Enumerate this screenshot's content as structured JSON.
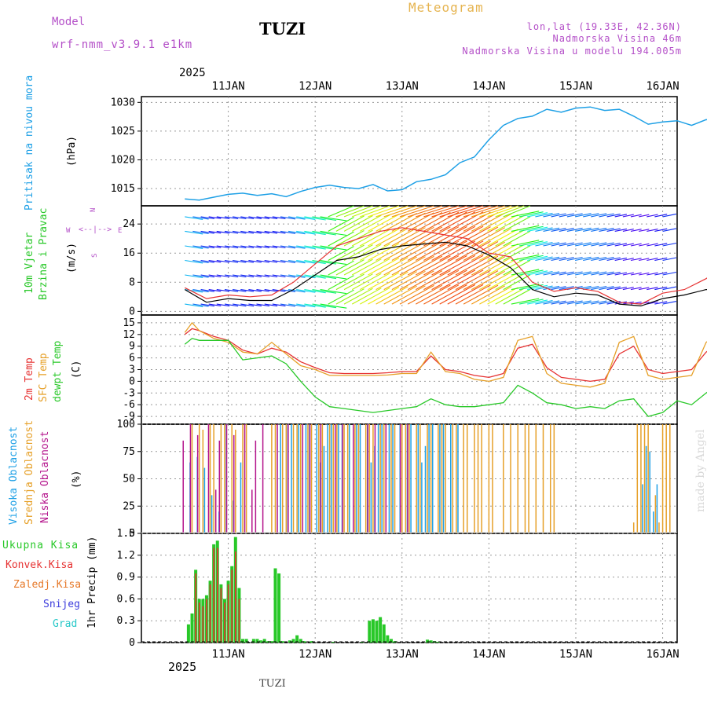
{
  "header": {
    "model_label": "Model",
    "model_name": "wrf-nmm_v3.9.1 e1km",
    "location": "TUZI",
    "title": "Meteogram",
    "coords": "lon,lat (19.33E, 42.36N)",
    "elevation": "Nadmorska Visina 46m",
    "model_elevation": "Nadmorska Visina u modelu 194.005m",
    "year_top": "2025",
    "year_bottom": "2025",
    "footer_location": "TUZI",
    "watermark": "made by Angel"
  },
  "colors": {
    "pressure": "#1ea0e6",
    "temp2m": "#e63232",
    "sfc": "#e6a028",
    "dewpoint": "#28c828",
    "high_cloud": "#1ea0e6",
    "mid_cloud": "#e6a028",
    "low_cloud": "#b4148c",
    "precip_total": "#28c828",
    "precip_conv": "#e63232",
    "precip_snow": "#3c3cdc",
    "wind_gust": "#e63232",
    "wind_dir_label": "#b450c8"
  },
  "chart_data": [
    {
      "type": "line",
      "panel": "pressure",
      "ylabel": [
        "Pritisak na nivou mora",
        "(hPa)"
      ],
      "ylim": [
        1012,
        1031
      ],
      "yticks": [
        1015,
        1020,
        1025,
        1030
      ],
      "x_days": [
        "11JAN",
        "12JAN",
        "13JAN",
        "14JAN",
        "15JAN",
        "16JAN"
      ],
      "x": [
        0,
        4,
        8,
        12,
        16,
        20,
        24,
        28,
        32,
        36,
        40,
        44,
        48,
        52,
        56,
        60,
        64,
        68,
        72,
        76,
        80,
        84,
        88,
        92,
        96,
        100,
        104,
        108,
        112,
        116,
        120,
        124,
        128,
        132,
        136,
        140,
        144,
        148
      ],
      "values": [
        1013.2,
        1013.0,
        1013.5,
        1014.0,
        1014.2,
        1013.8,
        1014.1,
        1013.6,
        1014.5,
        1015.2,
        1015.6,
        1015.2,
        1015.0,
        1015.7,
        1014.6,
        1014.8,
        1016.2,
        1016.6,
        1017.4,
        1019.5,
        1020.5,
        1023.5,
        1026.0,
        1027.2,
        1027.6,
        1028.8,
        1028.3,
        1029.0,
        1029.2,
        1028.6,
        1028.8,
        1027.6,
        1026.2,
        1026.6,
        1026.8,
        1026.0,
        1027.0,
        1026.7
      ]
    },
    {
      "type": "line",
      "panel": "wind",
      "ylabel": [
        "10m Vjetar",
        "Brzina i Pravac",
        "(m/s)"
      ],
      "direction_legend": [
        "N",
        "W",
        "E",
        "S"
      ],
      "ylim": [
        -1,
        29
      ],
      "yticks": [
        0,
        8,
        16,
        24
      ],
      "x": [
        0,
        6,
        12,
        18,
        24,
        30,
        36,
        42,
        48,
        54,
        60,
        66,
        72,
        78,
        84,
        90,
        96,
        102,
        108,
        114,
        120,
        126,
        132,
        138,
        144,
        148
      ],
      "series": [
        {
          "name": "speed",
          "values": [
            6.0,
            2.5,
            3.5,
            3.0,
            3.0,
            6.0,
            10.0,
            14.0,
            15.0,
            17.0,
            18.0,
            18.5,
            19.0,
            18.0,
            15.5,
            12.0,
            6.0,
            4.0,
            5.0,
            4.5,
            2.0,
            1.5,
            3.5,
            4.5,
            6.0,
            6.0
          ]
        },
        {
          "name": "gust",
          "values": [
            6.5,
            3.5,
            4.5,
            4.0,
            4.5,
            8.0,
            13.0,
            18.0,
            20.0,
            22.0,
            23.0,
            22.0,
            21.0,
            20.0,
            16.0,
            15.0,
            8.0,
            5.5,
            6.5,
            5.5,
            2.5,
            2.0,
            5.0,
            6.0,
            9.0,
            12.0
          ]
        }
      ]
    },
    {
      "type": "line",
      "panel": "temperature",
      "ylabel": [
        "2m Temp",
        "SFC Temp",
        "dewpt Temp",
        "(C)"
      ],
      "ylim": [
        -11,
        17
      ],
      "yticks": [
        -9,
        -6,
        -3,
        0,
        3,
        6,
        9,
        12,
        15
      ],
      "x": [
        0,
        2,
        4,
        8,
        12,
        16,
        20,
        24,
        28,
        32,
        36,
        40,
        44,
        48,
        52,
        56,
        60,
        64,
        68,
        72,
        76,
        80,
        84,
        88,
        92,
        96,
        100,
        104,
        108,
        112,
        116,
        120,
        124,
        128,
        132,
        136,
        140,
        144,
        148
      ],
      "series": [
        {
          "name": "2m Temp",
          "values": [
            12.0,
            13.5,
            13.0,
            11.5,
            10.5,
            8.0,
            7.0,
            8.5,
            7.5,
            5.0,
            3.5,
            2.2,
            2.0,
            2.0,
            2.0,
            2.2,
            2.5,
            2.5,
            6.5,
            3.0,
            2.5,
            1.5,
            1.0,
            2.0,
            8.5,
            9.5,
            3.5,
            1.0,
            0.5,
            0.0,
            0.5,
            7.0,
            9.0,
            3.0,
            2.0,
            2.5,
            3.0,
            7.5,
            10.0
          ]
        },
        {
          "name": "SFC Temp",
          "values": [
            12.5,
            15.0,
            13.0,
            11.0,
            10.0,
            7.5,
            7.0,
            10.0,
            7.0,
            4.0,
            3.0,
            1.5,
            1.5,
            1.5,
            1.5,
            1.6,
            2.0,
            2.0,
            7.5,
            2.5,
            2.0,
            0.5,
            0.0,
            1.0,
            10.5,
            11.5,
            2.0,
            -0.5,
            -1.0,
            -1.5,
            -0.5,
            10.0,
            11.5,
            1.5,
            0.5,
            1.0,
            1.5,
            10.0,
            12.5
          ]
        },
        {
          "name": "dewpt Temp",
          "values": [
            9.5,
            11.0,
            10.5,
            10.5,
            10.5,
            5.5,
            6.0,
            6.5,
            4.5,
            0.0,
            -4.0,
            -6.5,
            -7.0,
            -7.5,
            -8.0,
            -7.5,
            -7.0,
            -6.5,
            -4.5,
            -6.0,
            -6.5,
            -6.5,
            -6.0,
            -5.5,
            -1.0,
            -3.0,
            -5.5,
            -6.0,
            -7.0,
            -6.5,
            -7.0,
            -5.0,
            -4.5,
            -9.0,
            -8.0,
            -5.0,
            -6.0,
            -3.0,
            -0.5
          ]
        }
      ]
    },
    {
      "type": "bar",
      "panel": "cloud",
      "ylabel": [
        "Visoka Oblacnost",
        "Srednja Oblacnost",
        "Niska Oblacnost",
        "(%)"
      ],
      "ylim": [
        0,
        100
      ],
      "yticks": [
        0,
        25,
        50,
        75,
        100
      ],
      "segments": [
        {
          "series": "high",
          "from_h": 0,
          "to_h": 16,
          "pattern": [
            0,
            65,
            0,
            70,
            0,
            60,
            0,
            35,
            0,
            20,
            0,
            100,
            0,
            30
          ]
        },
        {
          "series": "mid",
          "from_h": 2,
          "to_h": 17,
          "pattern": [
            100,
            0,
            100,
            95,
            0,
            100,
            100,
            0,
            100
          ]
        },
        {
          "series": "low",
          "from_h": 0,
          "to_h": 22,
          "pattern": [
            85,
            0,
            100,
            0,
            90,
            0,
            0,
            100,
            0,
            40
          ]
        },
        {
          "series": "mid",
          "from_h": 24,
          "to_h": 86,
          "pattern": [
            100,
            100,
            0,
            100,
            100,
            0,
            100,
            100,
            100,
            0
          ]
        },
        {
          "series": "high",
          "from_h": 26,
          "to_h": 75,
          "pattern": [
            100,
            0,
            100,
            100,
            0,
            100,
            0,
            100,
            100,
            0,
            100,
            65,
            80,
            100
          ]
        },
        {
          "series": "low",
          "from_h": 26,
          "to_h": 62,
          "pattern": [
            100,
            0,
            0,
            100,
            0,
            0,
            0,
            100,
            0
          ]
        },
        {
          "series": "mid",
          "from_h": 88,
          "to_h": 102,
          "pattern": [
            100,
            0,
            100,
            0,
            100,
            0,
            100
          ]
        },
        {
          "series": "high",
          "from_h": 126,
          "to_h": 130,
          "pattern": [
            45,
            80,
            75,
            20
          ]
        },
        {
          "series": "mid",
          "from_h": 124,
          "to_h": 134,
          "pattern": [
            10,
            100,
            100,
            100,
            100,
            0,
            35
          ]
        }
      ]
    },
    {
      "type": "bar",
      "panel": "precip",
      "ylabel": [
        "1hr Precip (mm)"
      ],
      "legend": [
        "Ukupna Kisa",
        "Konvek.Kisa",
        "Zaledj.Kisa",
        "Snijeg",
        "Grad"
      ],
      "ylim": [
        0,
        1.5
      ],
      "yticks": [
        0,
        0.3,
        0.6,
        0.9,
        1.2,
        1.5
      ],
      "hours": [
        1,
        2,
        3,
        4,
        5,
        6,
        7,
        8,
        9,
        10,
        11,
        12,
        13,
        14,
        15,
        16,
        17,
        18,
        19,
        20,
        21,
        22,
        23,
        24,
        25,
        26,
        27,
        28,
        29,
        30,
        31,
        32,
        33,
        34,
        35,
        36,
        37,
        38,
        39,
        40,
        41,
        42,
        43,
        44,
        45,
        46,
        47,
        48,
        49,
        50,
        51,
        52,
        53,
        54,
        55,
        56,
        57,
        58,
        59,
        60,
        61,
        62,
        63,
        64,
        65,
        66,
        67,
        68,
        69,
        70
      ],
      "values": [
        0.25,
        0.4,
        1.0,
        0.6,
        0.6,
        0.65,
        0.85,
        1.35,
        1.4,
        0.8,
        0.6,
        0.85,
        1.05,
        1.45,
        0.75,
        0.05,
        0.05,
        0.0,
        0.05,
        0.05,
        0.03,
        0.05,
        0.02,
        0.02,
        1.02,
        0.95,
        0.02,
        0.0,
        0.03,
        0.05,
        0.1,
        0.05,
        0.02,
        0.0,
        0.02,
        0.0,
        0.0,
        0.0,
        0.0,
        0.0,
        0.01,
        0.0,
        0.0,
        0.0,
        0.0,
        0.0,
        0.0,
        0.0,
        0.01,
        0.0,
        0.3,
        0.32,
        0.3,
        0.35,
        0.25,
        0.1,
        0.05,
        0.02,
        0.0,
        0.0,
        0.0,
        0.0,
        0.0,
        0.0,
        0.0,
        0.0,
        0.04,
        0.03,
        0.02,
        0.01
      ],
      "convective": [
        0.0,
        0.0,
        0.95,
        0.55,
        0.5,
        0.6,
        0.8,
        1.3,
        1.3,
        0.75,
        0.55,
        0.8,
        1.0,
        1.25,
        0.6,
        0.0,
        0.0,
        0.0,
        0.0,
        0.0,
        0.0,
        0.0,
        0.0,
        0.0,
        0.0,
        0.0,
        0.0,
        0.0,
        0.0,
        0.0,
        0.0,
        0.0,
        0.0,
        0.0,
        0.0,
        0.0,
        0.0,
        0.0,
        0.0,
        0.0,
        0.0,
        0.0,
        0.0,
        0.0,
        0.0,
        0.0,
        0.0,
        0.0,
        0.0,
        0.0,
        0.0,
        0.0,
        0.0,
        0.0,
        0.0,
        0.0,
        0.0,
        0.0,
        0.0,
        0.0,
        0.0,
        0.0,
        0.0,
        0.0,
        0.0,
        0.0,
        0.0,
        0.0,
        0.0,
        0.0
      ]
    }
  ]
}
